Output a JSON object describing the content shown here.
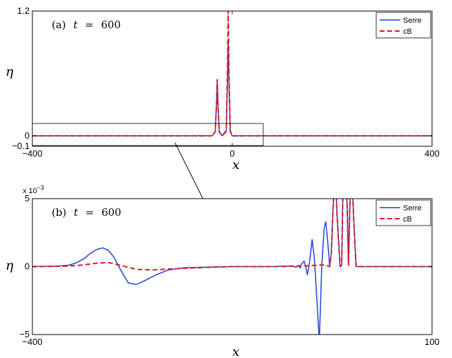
{
  "chart_data": [
    {
      "type": "line",
      "annotation": {
        "prefix": "(a)",
        "var": "t",
        "eq": "=",
        "value": "600"
      },
      "xlabel": "x",
      "ylabel": "η",
      "xlim": [
        -400,
        400
      ],
      "ylim": [
        -0.1,
        1.2
      ],
      "xticks": [
        {
          "v": -400,
          "label": "−400"
        },
        {
          "v": 0,
          "label": "0"
        },
        {
          "v": 400,
          "label": "400"
        }
      ],
      "yticks": [
        {
          "v": -0.1,
          "label": "−0.1"
        },
        {
          "v": 0,
          "label": "0"
        },
        {
          "v": 1.2,
          "label": "1.2"
        }
      ],
      "legend_position": "top-right",
      "series": [
        {
          "name": "Serre",
          "color": "#1f3fe0",
          "dash": "solid",
          "x": [
            -400,
            -100,
            -75,
            -72,
            -68,
            -65,
            -60,
            -40,
            -34,
            -31.5,
            -30,
            -28.5,
            -26,
            -20,
            -12,
            -9.5,
            -8,
            -6.5,
            -4,
            0,
            400
          ],
          "y": [
            0,
            0,
            0,
            -0.004,
            0.004,
            -0.003,
            0,
            0,
            0.04,
            0.3,
            0.52,
            0.3,
            0.04,
            0,
            0.04,
            0.5,
            0.93,
            0.5,
            0.04,
            0,
            0
          ]
        },
        {
          "name": "cB",
          "color": "#e0141e",
          "dash": "dashed",
          "x": [
            -400,
            -40,
            -34,
            -31.5,
            -30,
            -28.5,
            -26,
            -20,
            -12,
            -9.5,
            -8,
            -6.5,
            -4,
            0,
            400
          ],
          "y": [
            0,
            0,
            0.04,
            0.3,
            0.54,
            0.3,
            0.04,
            0,
            0.05,
            0.62,
            1.2,
            0.62,
            0.05,
            0,
            0
          ]
        }
      ]
    },
    {
      "type": "line",
      "annotation": {
        "prefix": "(b)",
        "var": "t",
        "eq": "=",
        "value": "600"
      },
      "xlabel": "x",
      "ylabel": "η",
      "multiplier": {
        "base": "x 10",
        "exp": "−3"
      },
      "xlim": [
        -400,
        100
      ],
      "ylim": [
        -0.005,
        0.005
      ],
      "xticks": [
        {
          "v": -400,
          "label": "−400"
        },
        {
          "v": 100,
          "label": "100"
        }
      ],
      "yticks": [
        {
          "v": -0.005,
          "label": "−5"
        },
        {
          "v": 0,
          "label": "0"
        },
        {
          "v": 0.005,
          "label": "5"
        }
      ],
      "legend_position": "top-right",
      "series": [
        {
          "name": "Serre",
          "color": "#1f3fe0",
          "dash": "solid",
          "x": [
            -400,
            -370,
            -355,
            -345,
            -335,
            -328,
            -320,
            -312,
            -305,
            -298,
            -290,
            -280,
            -270,
            -260,
            -245,
            -230,
            -210,
            -150,
            -100,
            -75,
            -70,
            -67,
            -65,
            -63,
            -60,
            -58,
            -56,
            -53,
            -50,
            -47,
            -44,
            -41,
            -38,
            -35,
            -33,
            -31,
            -28,
            -26,
            -24,
            -21,
            -19,
            -15,
            -13,
            -11.8,
            -10,
            -8,
            -6,
            -4.5,
            -3,
            -1,
            2,
            5,
            100
          ],
          "y": [
            0,
            3e-05,
            0.0001,
            0.00028,
            0.0006,
            0.00095,
            0.00125,
            0.00138,
            0.0012,
            0.0007,
            -0.0002,
            -0.0012,
            -0.00132,
            -0.00105,
            -0.0006,
            -0.00025,
            -8e-05,
            0,
            0,
            5e-05,
            -5e-05,
            0.0001,
            -0.0001,
            0.0002,
            0.0004,
            0,
            -0.0006,
            0.0004,
            0.002,
            0.0005,
            -0.0025,
            -0.0055,
            0,
            0.0028,
            0.0033,
            0.0022,
            0,
            0.001,
            0.004,
            0.0075,
            0.004,
            0,
            0.0001,
            0.0045,
            0.008,
            0.008,
            0.004,
            0.0001,
            0.004,
            0.008,
            0.0035,
            0,
            0
          ]
        },
        {
          "name": "cB",
          "color": "#e0141e",
          "dash": "dashed",
          "x": [
            -400,
            -360,
            -340,
            -320,
            -305,
            -290,
            -270,
            -250,
            -220,
            -180,
            -150,
            -100,
            -75,
            -60,
            -50,
            -40,
            -33,
            -28,
            -26,
            -24,
            -21,
            -19,
            -15,
            -13,
            -11.8,
            -10,
            -8,
            -6,
            -4.5,
            -3,
            -1,
            2,
            5,
            100
          ],
          "y": [
            0,
            3e-05,
            0.0001,
            0.00025,
            0.0003,
            0.0001,
            -0.0002,
            -0.00025,
            -0.00015,
            -5e-05,
            0,
            0,
            3e-05,
            5e-05,
            8e-05,
            0.00012,
            0.00012,
            0,
            0.001,
            0.004,
            0.0075,
            0.004,
            0,
            0.0001,
            0.0045,
            0.008,
            0.008,
            0.004,
            0.0001,
            0.004,
            0.008,
            0.0035,
            0,
            0
          ]
        }
      ]
    }
  ]
}
